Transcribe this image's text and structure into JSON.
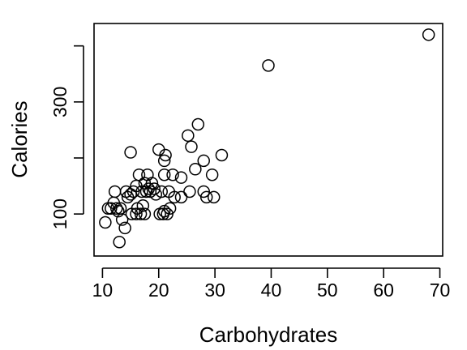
{
  "chart_data": {
    "type": "scatter",
    "title": "",
    "xlabel": "Carbohydrates",
    "ylabel": "Calories",
    "xlim": [
      8.5,
      70.5
    ],
    "ylim": [
      25,
      440
    ],
    "xticks": [
      "10",
      "20",
      "30",
      "40",
      "50",
      "60",
      "70"
    ],
    "yticks": [
      "100",
      "300"
    ],
    "grid": false,
    "legend": "none",
    "marker": "open-circle",
    "points": [
      {
        "x": 10.5,
        "y": 85
      },
      {
        "x": 11,
        "y": 110
      },
      {
        "x": 11.5,
        "y": 110
      },
      {
        "x": 12,
        "y": 120
      },
      {
        "x": 12.2,
        "y": 140
      },
      {
        "x": 12.5,
        "y": 110
      },
      {
        "x": 12.8,
        "y": 105
      },
      {
        "x": 13.2,
        "y": 110
      },
      {
        "x": 13.5,
        "y": 90
      },
      {
        "x": 13,
        "y": 50
      },
      {
        "x": 14,
        "y": 75
      },
      {
        "x": 14.2,
        "y": 140
      },
      {
        "x": 14.5,
        "y": 130
      },
      {
        "x": 15,
        "y": 210
      },
      {
        "x": 15,
        "y": 135
      },
      {
        "x": 15.2,
        "y": 100
      },
      {
        "x": 15.5,
        "y": 140
      },
      {
        "x": 16,
        "y": 150
      },
      {
        "x": 16,
        "y": 100
      },
      {
        "x": 16.2,
        "y": 110
      },
      {
        "x": 16.5,
        "y": 170
      },
      {
        "x": 16.8,
        "y": 100
      },
      {
        "x": 17,
        "y": 140
      },
      {
        "x": 17.2,
        "y": 115
      },
      {
        "x": 17.5,
        "y": 155
      },
      {
        "x": 17.5,
        "y": 100
      },
      {
        "x": 17.8,
        "y": 140
      },
      {
        "x": 18,
        "y": 170
      },
      {
        "x": 18.2,
        "y": 145
      },
      {
        "x": 18.5,
        "y": 140
      },
      {
        "x": 18.8,
        "y": 155
      },
      {
        "x": 19.2,
        "y": 145
      },
      {
        "x": 19.5,
        "y": 135
      },
      {
        "x": 20,
        "y": 215
      },
      {
        "x": 20.2,
        "y": 100
      },
      {
        "x": 20.5,
        "y": 140
      },
      {
        "x": 20.8,
        "y": 100
      },
      {
        "x": 21,
        "y": 195
      },
      {
        "x": 21,
        "y": 170
      },
      {
        "x": 21,
        "y": 105
      },
      {
        "x": 21.2,
        "y": 205
      },
      {
        "x": 21.5,
        "y": 100
      },
      {
        "x": 21.8,
        "y": 140
      },
      {
        "x": 22,
        "y": 110
      },
      {
        "x": 22.5,
        "y": 170
      },
      {
        "x": 22.8,
        "y": 130
      },
      {
        "x": 24,
        "y": 165
      },
      {
        "x": 24,
        "y": 130
      },
      {
        "x": 25.2,
        "y": 240
      },
      {
        "x": 25.5,
        "y": 140
      },
      {
        "x": 25.8,
        "y": 220
      },
      {
        "x": 26.5,
        "y": 180
      },
      {
        "x": 27,
        "y": 260
      },
      {
        "x": 28,
        "y": 195
      },
      {
        "x": 28,
        "y": 140
      },
      {
        "x": 28.5,
        "y": 130
      },
      {
        "x": 29.5,
        "y": 170
      },
      {
        "x": 29.8,
        "y": 130
      },
      {
        "x": 31.2,
        "y": 205
      },
      {
        "x": 39.5,
        "y": 365
      },
      {
        "x": 68,
        "y": 420
      }
    ]
  }
}
